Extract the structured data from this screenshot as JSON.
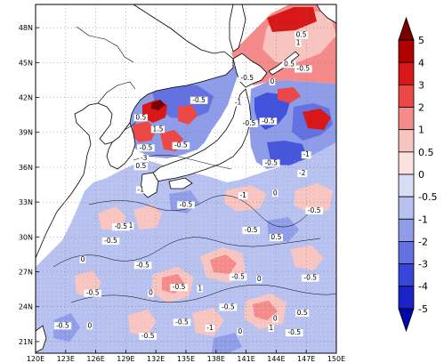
{
  "map": {
    "lon_ticks": [
      "120E",
      "123E",
      "126E",
      "129E",
      "132E",
      "135E",
      "138E",
      "141E",
      "144E",
      "147E",
      "150E"
    ],
    "lat_ticks": [
      "48N",
      "45N",
      "42N",
      "39N",
      "36N",
      "33N",
      "30N",
      "27N",
      "24N",
      "21N"
    ],
    "lon_range": [
      120,
      150
    ],
    "lat_range": [
      20,
      50
    ]
  },
  "colorbar": {
    "labels": [
      "5",
      "4",
      "3",
      "2",
      "1",
      "0.5",
      "0",
      "-0.5",
      "-1",
      "-2",
      "-3",
      "-4",
      "-5"
    ],
    "colors": [
      "#7a0000",
      "#b10000",
      "#d81818",
      "#ec4848",
      "#f48a8a",
      "#f8c4c0",
      "#fbe2df",
      "#d8ddf6",
      "#b7c1f0",
      "#8f9ce8",
      "#6372e0",
      "#3546d8",
      "#1a22c8",
      "#0008a8"
    ]
  },
  "contour_labels": [
    {
      "t": "-0.5",
      "lon": 141.3,
      "lat": 39.6
    },
    {
      "t": "0.5",
      "lon": 146.5,
      "lat": 47.2
    },
    {
      "t": "1",
      "lon": 146.2,
      "lat": 46.5
    },
    {
      "t": "0.5",
      "lon": 145.3,
      "lat": 44.7
    },
    {
      "t": "-0.5",
      "lon": 146.7,
      "lat": 44.3
    },
    {
      "t": "-0.5",
      "lon": 141.1,
      "lat": 43.5
    },
    {
      "t": "0",
      "lon": 143.6,
      "lat": 43.2
    },
    {
      "t": "-0.5",
      "lon": 136.3,
      "lat": 41.6
    },
    {
      "t": "-1",
      "lon": 140.2,
      "lat": 41.4
    },
    {
      "t": "0.5",
      "lon": 130.5,
      "lat": 40.1
    },
    {
      "t": "1.5",
      "lon": 132.2,
      "lat": 39.1
    },
    {
      "t": "-0.5",
      "lon": 143.2,
      "lat": 39.8
    },
    {
      "t": "-0.5",
      "lon": 131.0,
      "lat": 37.5
    },
    {
      "t": "-3",
      "lon": 130.8,
      "lat": 36.6
    },
    {
      "t": "0.5",
      "lon": 130.5,
      "lat": 35.9
    },
    {
      "t": "-0.5",
      "lon": 134.5,
      "lat": 37.7
    },
    {
      "t": "-1",
      "lon": 147.0,
      "lat": 36.9
    },
    {
      "t": "-0.5",
      "lon": 143.5,
      "lat": 36.2
    },
    {
      "t": "-2",
      "lon": 146.6,
      "lat": 35.3
    },
    {
      "t": "-1",
      "lon": 130.5,
      "lat": 33.9
    },
    {
      "t": "-1",
      "lon": 140.7,
      "lat": 33.4
    },
    {
      "t": "-0.5",
      "lon": 135.0,
      "lat": 32.6
    },
    {
      "t": "0",
      "lon": 143.9,
      "lat": 33.6
    },
    {
      "t": "-0.5",
      "lon": 147.8,
      "lat": 32.1
    },
    {
      "t": "-0.5",
      "lon": 128.5,
      "lat": 30.7
    },
    {
      "t": "1",
      "lon": 129.5,
      "lat": 30.8
    },
    {
      "t": "-0.5",
      "lon": 141.5,
      "lat": 30.4
    },
    {
      "t": "-0.5",
      "lon": 127.5,
      "lat": 29.5
    },
    {
      "t": "0.5",
      "lon": 144.0,
      "lat": 29.8
    },
    {
      "t": "0",
      "lon": 124.7,
      "lat": 27.9
    },
    {
      "t": "-0.5",
      "lon": 130.7,
      "lat": 27.4
    },
    {
      "t": "-0.5",
      "lon": 134.3,
      "lat": 25.5
    },
    {
      "t": "1",
      "lon": 136.4,
      "lat": 25.4
    },
    {
      "t": "-0.5",
      "lon": 140.2,
      "lat": 26.4
    },
    {
      "t": "0",
      "lon": 142.3,
      "lat": 26.2
    },
    {
      "t": "-0.5",
      "lon": 147.4,
      "lat": 26.3
    },
    {
      "t": "-0.5",
      "lon": 125.7,
      "lat": 25.0
    },
    {
      "t": "0",
      "lon": 131.5,
      "lat": 25.0
    },
    {
      "t": "-0.5",
      "lon": 139.2,
      "lat": 23.8
    },
    {
      "t": "0.5",
      "lon": 146.6,
      "lat": 23.3
    },
    {
      "t": "-0.5",
      "lon": 134.6,
      "lat": 22.5
    },
    {
      "t": "0",
      "lon": 143.9,
      "lat": 22.8
    },
    {
      "t": "-0.5",
      "lon": 122.7,
      "lat": 22.2
    },
    {
      "t": "0",
      "lon": 125.4,
      "lat": 22.2
    },
    {
      "t": "-1",
      "lon": 137.4,
      "lat": 22.0
    },
    {
      "t": "1",
      "lon": 143.5,
      "lat": 22.0
    },
    {
      "t": "-0.5",
      "lon": 131.2,
      "lat": 21.3
    },
    {
      "t": "0",
      "lon": 140.4,
      "lat": 21.7
    },
    {
      "t": "-0.5",
      "lon": 145.8,
      "lat": 21.6
    }
  ]
}
